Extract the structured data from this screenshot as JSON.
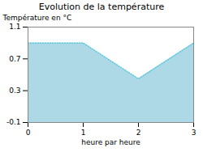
{
  "chart_data": {
    "type": "area",
    "title": "Evolution de la température",
    "x_label": "heure par heure",
    "y_label": "Température en °C",
    "x": [
      0,
      1,
      2,
      3
    ],
    "series": [
      {
        "type": "area",
        "color": "#add8e6",
        "values": [
          0.9,
          0.9,
          0.45,
          0.9
        ]
      },
      {
        "type": "line",
        "color": "#5bc8e0",
        "line_style": "dotted",
        "values": [
          0.9,
          0.9,
          0.45,
          0.9
        ]
      }
    ],
    "xlim": [
      0,
      3
    ],
    "ylim": [
      -0.1,
      1.1
    ],
    "xticks": [
      0,
      1,
      2,
      3
    ],
    "yticks": [
      -0.1,
      0.3,
      0.7,
      1.1
    ]
  }
}
